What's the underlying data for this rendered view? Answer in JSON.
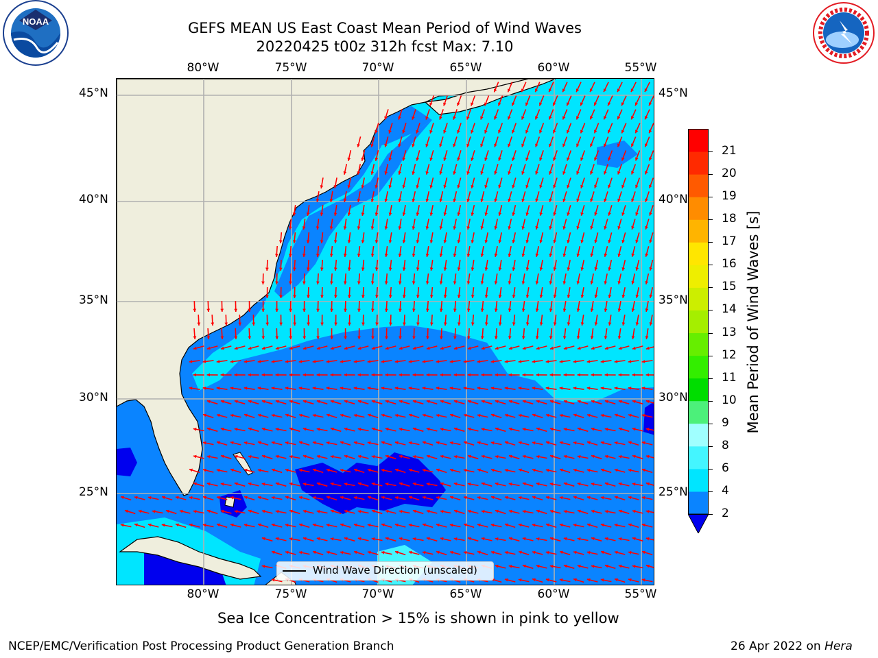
{
  "header": {
    "title_line1": "GEFS MEAN US East Coast Mean Period of Wind Waves",
    "title_line2": "20220425 t00z 312h fcst   Max: 7.10"
  },
  "logos": {
    "noaa": {
      "text": "NOAA",
      "ring_text": "NATIONAL OCEANIC AND ATMOSPHERIC ADMINISTRATION · U.S. DEPARTMENT OF COMMERCE"
    },
    "nws": {
      "ring_text": "NATIONAL WEATHER SERVICE"
    }
  },
  "map": {
    "lon_labels": [
      "80°W",
      "75°W",
      "70°W",
      "65°W",
      "60°W",
      "55°W"
    ],
    "lat_labels": [
      "45°N",
      "40°N",
      "35°N",
      "30°N",
      "25°N"
    ],
    "legend_label": "Wind Wave Direction (unscaled)",
    "arrow_color": "#ff0000",
    "land_color": "#efeedd",
    "grid_color": "#b0b0b0"
  },
  "colorbar": {
    "title": "Mean Period of Wind Waves [s]",
    "ticks": [
      "2",
      "4",
      "6",
      "8",
      "9",
      "10",
      "11",
      "12",
      "13",
      "14",
      "15",
      "16",
      "17",
      "18",
      "19",
      "20",
      "21"
    ],
    "colors": [
      "#0a84ff",
      "#00e5ff",
      "#44f5ff",
      "#a0ffff",
      "#4cf07a",
      "#00dd00",
      "#33ee00",
      "#66ee00",
      "#a5ee00",
      "#ccee00",
      "#eeee00",
      "#ffe600",
      "#ffb400",
      "#ff8c00",
      "#ff5a00",
      "#ff2a00",
      "#ff0000"
    ],
    "under_color": "#0000ee"
  },
  "footer": {
    "ice_note": "Sea Ice Concentration > 15% is shown in pink to yellow",
    "branch": "NCEP/EMC/Verification Post Processing Product Generation Branch",
    "date_prefix": "26 Apr 2022 on ",
    "machine": "Hera"
  }
}
